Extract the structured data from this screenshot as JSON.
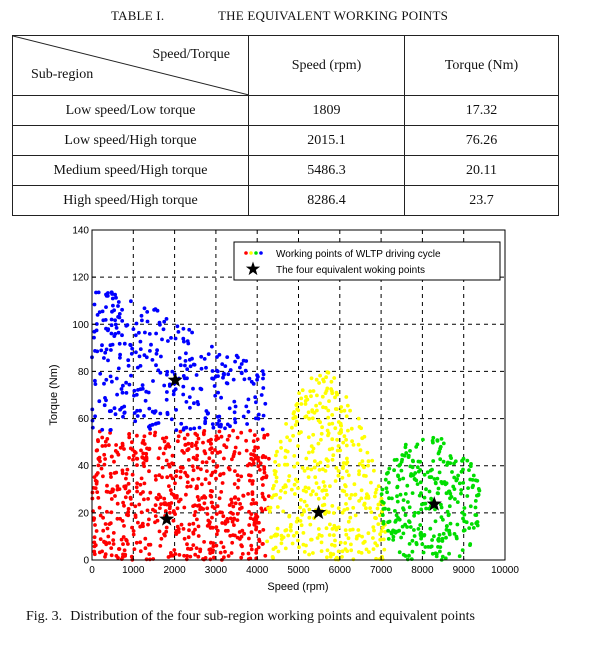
{
  "table": {
    "number": "TABLE I.",
    "title": "THE EQUIVALENT WORKING POINTS",
    "diag_top": "Speed/Torque",
    "diag_bottom": "Sub-region",
    "col_speed": "Speed (rpm)",
    "col_torque": "Torque (Nm)",
    "rows": [
      {
        "region": "Low speed/Low torque",
        "speed": "1809",
        "torque": "17.32"
      },
      {
        "region": "Low speed/High torque",
        "speed": "2015.1",
        "torque": "76.26"
      },
      {
        "region": "Medium speed/High torque",
        "speed": "5486.3",
        "torque": "20.11"
      },
      {
        "region": "High speed/High torque",
        "speed": "8286.4",
        "torque": "23.7"
      }
    ]
  },
  "chart_data": {
    "type": "scatter",
    "xlabel": "Speed (rpm)",
    "ylabel": "Torque (Nm)",
    "xlim": [
      0,
      10000
    ],
    "ylim": [
      0,
      140
    ],
    "xticks": [
      0,
      1000,
      2000,
      3000,
      4000,
      5000,
      6000,
      7000,
      8000,
      9000,
      10000
    ],
    "yticks": [
      0,
      20,
      40,
      60,
      80,
      100,
      120,
      140
    ],
    "grid": true,
    "legend_position": "top-right",
    "legend": [
      {
        "label": "Working points of WLTP driving cycle",
        "marker": "multicolor-dots"
      },
      {
        "label": "The four equivalent woking points",
        "marker": "star"
      }
    ],
    "region_colors": {
      "low_speed_low_torque": "#ff0000",
      "low_speed_high_torque": "#0000ff",
      "medium_speed_high_torque": "#ffff00",
      "high_speed_high_torque": "#00dd00"
    },
    "regions": [
      {
        "color": "#ff0000",
        "x_range": [
          0,
          4300
        ],
        "y_range": [
          0,
          55
        ],
        "approx_points": 650
      },
      {
        "color": "#0000ff",
        "x_range": [
          0,
          4200
        ],
        "y_range": [
          55,
          122
        ],
        "approx_points": 330
      },
      {
        "color": "#ffff00",
        "x_range": [
          4200,
          7100
        ],
        "y_range": [
          0,
          80
        ],
        "approx_points": 420
      },
      {
        "color": "#00dd00",
        "x_range": [
          7000,
          9400
        ],
        "y_range": [
          0,
          52
        ],
        "approx_points": 300
      }
    ],
    "equivalent_points": [
      {
        "x": 1809,
        "y": 17.32
      },
      {
        "x": 2015.1,
        "y": 76.26
      },
      {
        "x": 5486.3,
        "y": 20.11
      },
      {
        "x": 8286.4,
        "y": 23.7
      }
    ],
    "star_color": "#000000"
  },
  "figure": {
    "label": "Fig. 3.",
    "caption": "Distribution of the four sub-region working points and equivalent points"
  }
}
